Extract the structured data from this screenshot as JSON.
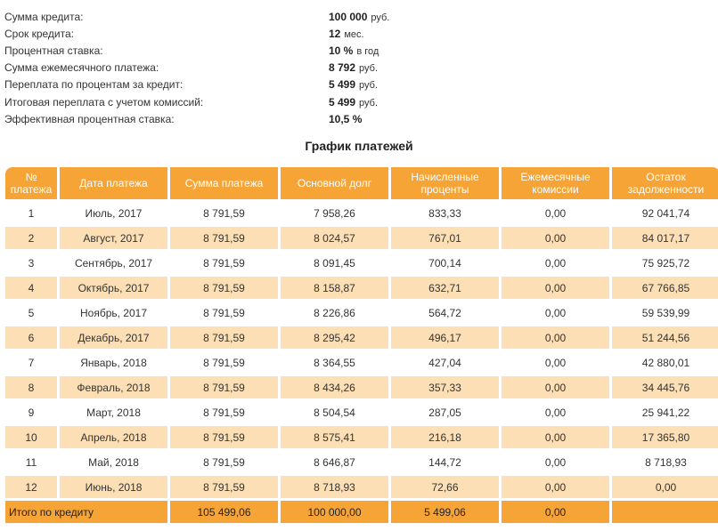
{
  "summary": [
    {
      "label": "Сумма кредита:",
      "value": "100 000",
      "unit": "руб."
    },
    {
      "label": "Срок кредита:",
      "value": "12",
      "unit": "мес."
    },
    {
      "label": "Процентная ставка:",
      "value": "10 %",
      "unit": "в год"
    },
    {
      "label": "Сумма ежемесячного платежа:",
      "value": "8 792",
      "unit": "руб."
    },
    {
      "label": "Переплата по процентам за кредит:",
      "value": "5 499",
      "unit": "руб."
    },
    {
      "label": "Итоговая переплата с учетом комиссий:",
      "value": "5 499",
      "unit": "руб."
    },
    {
      "label": "Эффективная процентная ставка:",
      "value": "10,5 %",
      "unit": ""
    }
  ],
  "schedule_title": "График платежей",
  "columns": [
    "№ платежа",
    "Дата платежа",
    "Сумма платежа",
    "Основной долг",
    "Начисленные проценты",
    "Ежемесячные комиссии",
    "Остаток задолженности"
  ],
  "rows": [
    [
      "1",
      "Июль, 2017",
      "8 791,59",
      "7 958,26",
      "833,33",
      "0,00",
      "92 041,74"
    ],
    [
      "2",
      "Август, 2017",
      "8 791,59",
      "8 024,57",
      "767,01",
      "0,00",
      "84 017,17"
    ],
    [
      "3",
      "Сентябрь, 2017",
      "8 791,59",
      "8 091,45",
      "700,14",
      "0,00",
      "75 925,72"
    ],
    [
      "4",
      "Октябрь, 2017",
      "8 791,59",
      "8 158,87",
      "632,71",
      "0,00",
      "67 766,85"
    ],
    [
      "5",
      "Ноябрь, 2017",
      "8 791,59",
      "8 226,86",
      "564,72",
      "0,00",
      "59 539,99"
    ],
    [
      "6",
      "Декабрь, 2017",
      "8 791,59",
      "8 295,42",
      "496,17",
      "0,00",
      "51 244,56"
    ],
    [
      "7",
      "Январь, 2018",
      "8 791,59",
      "8 364,55",
      "427,04",
      "0,00",
      "42 880,01"
    ],
    [
      "8",
      "Февраль, 2018",
      "8 791,59",
      "8 434,26",
      "357,33",
      "0,00",
      "34 445,76"
    ],
    [
      "9",
      "Март, 2018",
      "8 791,59",
      "8 504,54",
      "287,05",
      "0,00",
      "25 941,22"
    ],
    [
      "10",
      "Апрель, 2018",
      "8 791,59",
      "8 575,41",
      "216,18",
      "0,00",
      "17 365,80"
    ],
    [
      "11",
      "Май, 2018",
      "8 791,59",
      "8 646,87",
      "144,72",
      "0,00",
      "8 718,93"
    ],
    [
      "12",
      "Июнь, 2018",
      "8 791,59",
      "8 718,93",
      "72,66",
      "0,00",
      "0,00"
    ]
  ],
  "totals": {
    "label": "Итого по кредиту",
    "payment": "105 499,06",
    "principal": "100 000,00",
    "interest": "5 499,06",
    "fees": "0,00",
    "balance": ""
  },
  "colors": {
    "header": "#f7a436",
    "stripe": "#fcdfb4"
  }
}
